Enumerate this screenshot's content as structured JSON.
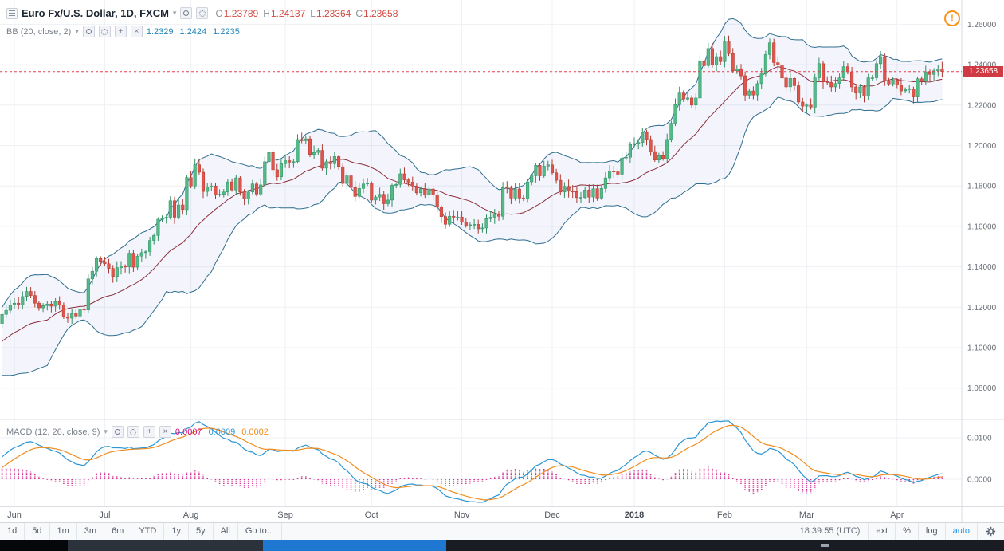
{
  "header": {
    "title": "Euro Fx/U.S. Dollar, 1D, FXCM",
    "ohlc": {
      "o_label": "O",
      "o_value": "1.23789",
      "h_label": "H",
      "h_value": "1.24137",
      "l_label": "L",
      "l_value": "1.23364",
      "c_label": "C",
      "c_value": "1.23658"
    },
    "indicator": {
      "label": "BB (20, close, 2)",
      "basis_value": "1.2329",
      "upper_value": "1.2424",
      "lower_value": "1.2235"
    }
  },
  "macd": {
    "label": "MACD (12, 26, close, 9)",
    "histogram_value": "0.0007",
    "macd_value": "0.0009",
    "signal_value": "0.0002"
  },
  "price_axis": {
    "last_price": "1.23658"
  },
  "alert": {
    "glyph": "!"
  },
  "toolbar": {
    "ranges": [
      "1d",
      "5d",
      "1m",
      "3m",
      "6m",
      "YTD",
      "1y",
      "5y",
      "All"
    ],
    "goto_label": "Go to...",
    "clock": "18:39:55 (UTC)",
    "ext_label": "ext",
    "percent_label": "%",
    "log_label": "log",
    "auto_label": "auto"
  },
  "colors": {
    "up_candle": "#53b987",
    "down_candle": "#e0544b",
    "bb_band": "#2f6e8e",
    "bb_basis": "#8c2f39",
    "bb_fill": "rgba(96,112,219,0.08)",
    "macd_line": "#2a96d6",
    "signal_line": "#f08c1e",
    "histogram": "#d0117f",
    "last_price_bg": "#cf3a44",
    "accent_blue": "#2196f3",
    "alert_orange": "#f7931a"
  },
  "chart_data": {
    "type": "candlestick",
    "title": "Euro Fx/U.S. Dollar, 1D, FXCM",
    "overlays": [
      "Bollinger Bands (20, close, 2)"
    ],
    "lower_panel": "MACD (12, 26, close, 9)",
    "x_labels": [
      "Jun",
      "Jul",
      "Aug",
      "Sep",
      "Oct",
      "Nov",
      "Dec",
      "2018",
      "Feb",
      "Mar",
      "Apr"
    ],
    "x_label_indices": [
      11,
      33,
      54,
      77,
      98,
      120,
      142,
      162,
      184,
      204,
      226
    ],
    "y_ticks": [
      1.26,
      1.24,
      1.22,
      1.2,
      1.18,
      1.16,
      1.14,
      1.12,
      1.1,
      1.08
    ],
    "macd_ticks": [
      0.01,
      0.0
    ],
    "price_range_visible": [
      1.065,
      1.272
    ],
    "macd_range_visible": [
      -0.0065,
      0.0146
    ],
    "last_close": 1.23658,
    "ohlc_current": {
      "open": 1.23789,
      "high": 1.24137,
      "low": 1.23364,
      "close": 1.23658
    },
    "bb_current": {
      "basis": 1.2329,
      "upper": 1.2424,
      "lower": 1.2235
    },
    "macd_current": {
      "histogram": 0.0007,
      "macd": 0.0009,
      "signal": 0.0002
    },
    "warmup_count": 8,
    "closes": [
      1.0905,
      1.0938,
      1.097,
      1.0985,
      1.102,
      1.1078,
      1.1102,
      1.112,
      1.1165,
      1.1185,
      1.121,
      1.122,
      1.1212,
      1.1253,
      1.1278,
      1.1258,
      1.122,
      1.1197,
      1.1208,
      1.1216,
      1.1205,
      1.1228,
      1.121,
      1.1152,
      1.1146,
      1.1168,
      1.1156,
      1.119,
      1.1186,
      1.134,
      1.1378,
      1.1441,
      1.1426,
      1.1415,
      1.1392,
      1.1352,
      1.1396,
      1.1403,
      1.14,
      1.1467,
      1.1398,
      1.1453,
      1.147,
      1.1475,
      1.153,
      1.1555,
      1.1635,
      1.164,
      1.1645,
      1.1727,
      1.1645,
      1.1706,
      1.1683,
      1.1842,
      1.18,
      1.1905,
      1.1868,
      1.1773,
      1.1795,
      1.18,
      1.1755,
      1.1759,
      1.177,
      1.182,
      1.178,
      1.184,
      1.177,
      1.1736,
      1.177,
      1.181,
      1.176,
      1.1805,
      1.192,
      1.1966,
      1.188,
      1.1845,
      1.191,
      1.1925,
      1.1918,
      1.192,
      1.203,
      1.2024,
      1.2033,
      1.1955,
      1.1966,
      1.1976,
      1.1888,
      1.192,
      1.191,
      1.1945,
      1.1895,
      1.1812,
      1.185,
      1.1792,
      1.1748,
      1.1788,
      1.181,
      1.1814,
      1.173,
      1.1745,
      1.1758,
      1.1712,
      1.173,
      1.1803,
      1.1808,
      1.186,
      1.183,
      1.1819,
      1.18,
      1.1766,
      1.1785,
      1.1757,
      1.1785,
      1.1756,
      1.1695,
      1.1648,
      1.161,
      1.165,
      1.1645,
      1.1646,
      1.162,
      1.1605,
      1.1608,
      1.161,
      1.1588,
      1.1592,
      1.1638,
      1.1645,
      1.1662,
      1.165,
      1.1792,
      1.179,
      1.174,
      1.1785,
      1.174,
      1.1736,
      1.182,
      1.185,
      1.1902,
      1.185,
      1.1898,
      1.1904,
      1.1865,
      1.1828,
      1.177,
      1.1798,
      1.1774,
      1.1772,
      1.1742,
      1.1743,
      1.178,
      1.1745,
      1.1786,
      1.174,
      1.1788,
      1.184,
      1.1873,
      1.187,
      1.1858,
      1.1938,
      1.1942,
      1.2005,
      1.201,
      1.2015,
      1.2065,
      1.203,
      1.197,
      1.1928,
      1.195,
      1.1935,
      1.203,
      1.211,
      1.2202,
      1.226,
      1.223,
      1.2235,
      1.22,
      1.2235,
      1.2415,
      1.2395,
      1.248,
      1.2398,
      1.244,
      1.2415,
      1.2513,
      1.2455,
      1.237,
      1.238,
      1.2345,
      1.2249,
      1.227,
      1.225,
      1.2306,
      1.2355,
      1.245,
      1.2508,
      1.241,
      1.2398,
      1.2334,
      1.229,
      1.2332,
      1.2296,
      1.2215,
      1.2195,
      1.22,
      1.219,
      1.2335,
      1.2405,
      1.2315,
      1.2312,
      1.229,
      1.2307,
      1.2335,
      1.239,
      1.2365,
      1.229,
      1.226,
      1.229,
      1.2245,
      1.2335,
      1.2335,
      1.2405,
      1.244,
      1.232,
      1.2305,
      1.2324,
      1.23,
      1.227,
      1.2278,
      1.228,
      1.224,
      1.233,
      1.232,
      1.2365,
      1.2352,
      1.237,
      1.23789,
      1.23658
    ]
  }
}
